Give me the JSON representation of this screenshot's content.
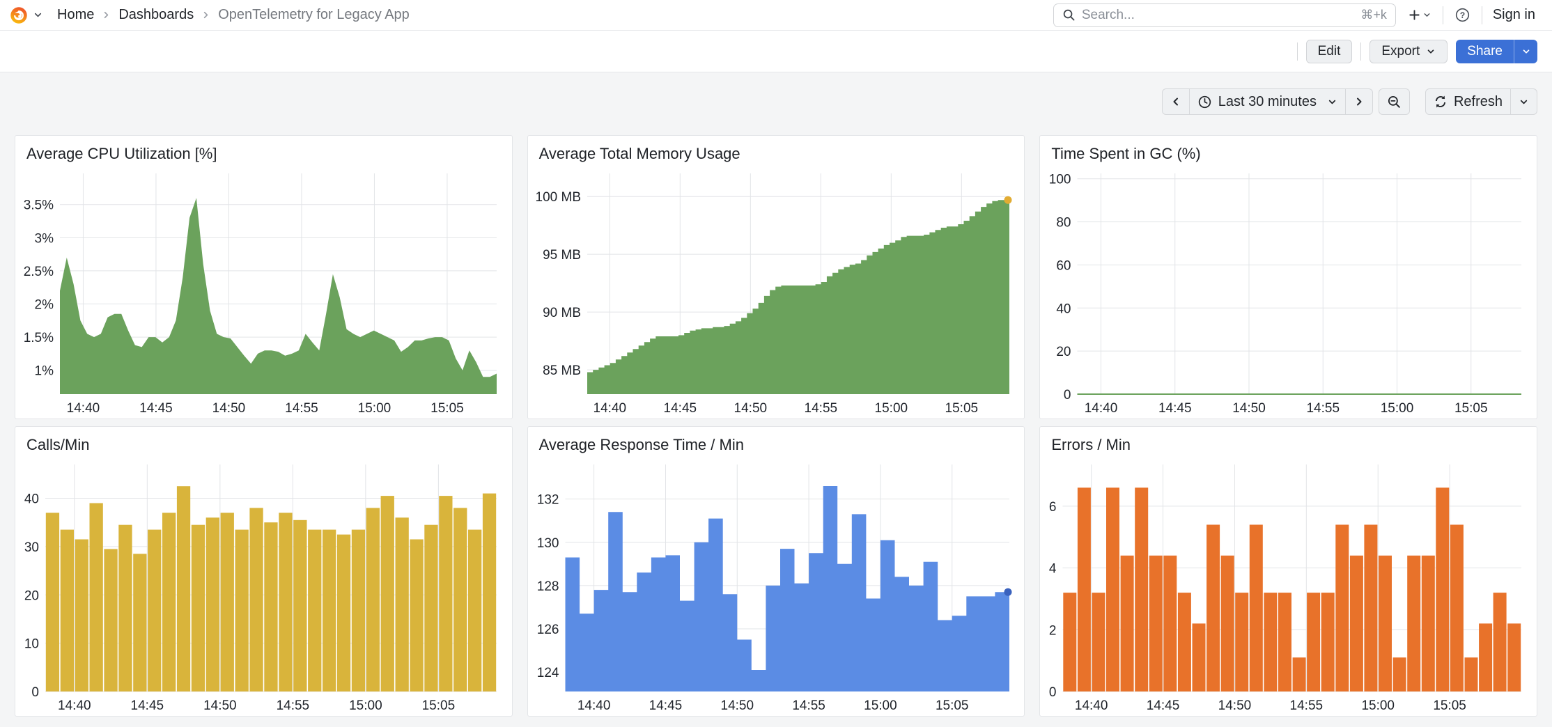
{
  "topnav": {
    "breadcrumb": [
      {
        "label": "Home"
      },
      {
        "label": "Dashboards"
      },
      {
        "label": "OpenTelemetry for Legacy App"
      }
    ],
    "search": {
      "placeholder": "Search...",
      "shortcut": "⌘+k"
    },
    "sign_in": "Sign in"
  },
  "toolbar": {
    "edit": "Edit",
    "export": "Export",
    "share": "Share"
  },
  "timebar": {
    "range_label": "Last 30 minutes",
    "refresh_label": "Refresh"
  },
  "colors": {
    "green": "#6BA25C",
    "yellow": "#D9B43B",
    "blue": "#5B8CE4",
    "orange": "#E8722A",
    "primary_blue": "#3B70D6",
    "grid_line": "#E2E4E7",
    "page_bg": "#F4F5F6"
  },
  "panels": [
    {
      "title": "Average CPU Utilization [%]",
      "chart_data": {
        "type": "area",
        "color": "#6BA25C",
        "xlabel": "",
        "ylabel": "",
        "ylim": [
          0.64,
          3.97
        ],
        "x_domain": [
          878.4,
          908.4
        ],
        "y_ticks": [
          {
            "v": 1,
            "t": "1%"
          },
          {
            "v": 1.5,
            "t": "1.5%"
          },
          {
            "v": 2,
            "t": "2%"
          },
          {
            "v": 2.5,
            "t": "2.5%"
          },
          {
            "v": 3,
            "t": "3%"
          },
          {
            "v": 3.5,
            "t": "3.5%"
          }
        ],
        "x_ticks": [
          {
            "v": 880,
            "t": "14:40"
          },
          {
            "v": 885,
            "t": "14:45"
          },
          {
            "v": 890,
            "t": "14:50"
          },
          {
            "v": 895,
            "t": "14:55"
          },
          {
            "v": 900,
            "t": "15:00"
          },
          {
            "v": 905,
            "t": "15:05"
          }
        ],
        "values": [
          2.2,
          2.7,
          2.3,
          1.75,
          1.55,
          1.5,
          1.55,
          1.8,
          1.85,
          1.85,
          1.6,
          1.38,
          1.35,
          1.5,
          1.5,
          1.42,
          1.5,
          1.75,
          2.4,
          3.3,
          3.6,
          2.6,
          1.9,
          1.55,
          1.5,
          1.48,
          1.35,
          1.22,
          1.1,
          1.25,
          1.3,
          1.3,
          1.28,
          1.22,
          1.25,
          1.3,
          1.55,
          1.42,
          1.3,
          1.85,
          2.45,
          2.1,
          1.62,
          1.55,
          1.5,
          1.55,
          1.6,
          1.55,
          1.5,
          1.45,
          1.28,
          1.35,
          1.45,
          1.45,
          1.48,
          1.5,
          1.5,
          1.45,
          1.18,
          1.0,
          1.3,
          1.12,
          0.9,
          0.9,
          0.95
        ]
      }
    },
    {
      "title": "Average Total Memory Usage",
      "chart_data": {
        "type": "steps",
        "color": "#6BA25C",
        "end_dot": "#E2AC33",
        "xlabel": "",
        "ylabel": "",
        "ylim": [
          82.9,
          102.0
        ],
        "x_domain": [
          878.4,
          908.4
        ],
        "y_ticks": [
          {
            "v": 85,
            "t": "85 MB"
          },
          {
            "v": 90,
            "t": "90 MB"
          },
          {
            "v": 95,
            "t": "95 MB"
          },
          {
            "v": 100,
            "t": "100 MB"
          }
        ],
        "x_ticks": [
          {
            "v": 880,
            "t": "14:40"
          },
          {
            "v": 885,
            "t": "14:45"
          },
          {
            "v": 890,
            "t": "14:50"
          },
          {
            "v": 895,
            "t": "14:55"
          },
          {
            "v": 900,
            "t": "15:00"
          },
          {
            "v": 905,
            "t": "15:05"
          }
        ],
        "values": [
          84.8,
          85.0,
          85.2,
          85.4,
          85.6,
          85.9,
          86.2,
          86.5,
          86.8,
          87.1,
          87.4,
          87.7,
          87.9,
          87.9,
          87.9,
          87.9,
          88.0,
          88.2,
          88.4,
          88.5,
          88.6,
          88.6,
          88.7,
          88.7,
          88.8,
          89.0,
          89.2,
          89.5,
          89.9,
          90.3,
          90.8,
          91.4,
          91.9,
          92.2,
          92.3,
          92.3,
          92.3,
          92.3,
          92.3,
          92.3,
          92.4,
          92.6,
          93.1,
          93.4,
          93.7,
          93.9,
          94.1,
          94.2,
          94.5,
          94.9,
          95.2,
          95.5,
          95.8,
          96.0,
          96.2,
          96.5,
          96.6,
          96.6,
          96.6,
          96.7,
          96.9,
          97.1,
          97.3,
          97.4,
          97.4,
          97.6,
          97.9,
          98.3,
          98.7,
          99.1,
          99.4,
          99.6,
          99.7,
          99.7
        ]
      }
    },
    {
      "title": "Time Spent in GC (%)",
      "chart_data": {
        "type": "line",
        "color": "#6BA25C",
        "xlabel": "",
        "ylabel": "",
        "ylim": [
          0,
          102.5
        ],
        "x_domain": [
          878.4,
          908.4
        ],
        "y_ticks": [
          {
            "v": 0,
            "t": "0"
          },
          {
            "v": 20,
            "t": "20"
          },
          {
            "v": 40,
            "t": "40"
          },
          {
            "v": 60,
            "t": "60"
          },
          {
            "v": 80,
            "t": "80"
          },
          {
            "v": 100,
            "t": "100"
          }
        ],
        "x_ticks": [
          {
            "v": 880,
            "t": "14:40"
          },
          {
            "v": 885,
            "t": "14:45"
          },
          {
            "v": 890,
            "t": "14:50"
          },
          {
            "v": 895,
            "t": "14:55"
          },
          {
            "v": 900,
            "t": "15:00"
          },
          {
            "v": 905,
            "t": "15:05"
          }
        ],
        "values": [
          0
        ]
      }
    },
    {
      "title": "Calls/Min",
      "chart_data": {
        "type": "bars",
        "color": "#D9B43B",
        "xlabel": "",
        "ylabel": "",
        "ylim": [
          0,
          47
        ],
        "x_domain": [
          878,
          909
        ],
        "y_ticks": [
          {
            "v": 0,
            "t": "0"
          },
          {
            "v": 10,
            "t": "10"
          },
          {
            "v": 20,
            "t": "20"
          },
          {
            "v": 30,
            "t": "30"
          },
          {
            "v": 40,
            "t": "40"
          }
        ],
        "x_ticks": [
          {
            "v": 880,
            "t": "14:40"
          },
          {
            "v": 885,
            "t": "14:45"
          },
          {
            "v": 890,
            "t": "14:50"
          },
          {
            "v": 895,
            "t": "14:55"
          },
          {
            "v": 900,
            "t": "15:00"
          },
          {
            "v": 905,
            "t": "15:05"
          }
        ],
        "values": [
          37,
          33.5,
          31.5,
          39,
          29.5,
          34.5,
          28.5,
          33.5,
          37,
          42.5,
          34.5,
          36,
          37,
          33.5,
          38,
          35,
          37,
          35.5,
          33.5,
          33.5,
          32.5,
          33.5,
          38,
          40.5,
          36,
          31.5,
          34.5,
          40.5,
          38,
          33.5,
          41
        ]
      }
    },
    {
      "title": "Average Response Time / Min",
      "chart_data": {
        "type": "steps",
        "color": "#5B8CE4",
        "end_dot": "#3A62BE",
        "xlabel": "",
        "ylabel": "",
        "ylim": [
          123.1,
          133.6
        ],
        "x_domain": [
          878,
          909
        ],
        "y_ticks": [
          {
            "v": 124,
            "t": "124"
          },
          {
            "v": 126,
            "t": "126"
          },
          {
            "v": 128,
            "t": "128"
          },
          {
            "v": 130,
            "t": "130"
          },
          {
            "v": 132,
            "t": "132"
          }
        ],
        "x_ticks": [
          {
            "v": 880,
            "t": "14:40"
          },
          {
            "v": 885,
            "t": "14:45"
          },
          {
            "v": 890,
            "t": "14:50"
          },
          {
            "v": 895,
            "t": "14:55"
          },
          {
            "v": 900,
            "t": "15:00"
          },
          {
            "v": 905,
            "t": "15:05"
          }
        ],
        "values": [
          129.3,
          126.7,
          127.8,
          131.4,
          127.7,
          128.6,
          129.3,
          129.4,
          127.3,
          130.0,
          131.1,
          127.6,
          125.5,
          124.1,
          128.0,
          129.7,
          128.1,
          129.5,
          132.6,
          129.0,
          131.3,
          127.4,
          130.1,
          128.4,
          128.0,
          129.1,
          126.4,
          126.6,
          127.5,
          127.5,
          127.7
        ]
      }
    },
    {
      "title": "Errors / Min",
      "chart_data": {
        "type": "bars",
        "color": "#E8722A",
        "xlabel": "",
        "ylabel": "",
        "ylim": [
          0,
          7.35
        ],
        "x_domain": [
          878,
          910
        ],
        "y_ticks": [
          {
            "v": 0,
            "t": "0"
          },
          {
            "v": 2,
            "t": "2"
          },
          {
            "v": 4,
            "t": "4"
          },
          {
            "v": 6,
            "t": "6"
          }
        ],
        "x_ticks": [
          {
            "v": 880,
            "t": "14:40"
          },
          {
            "v": 885,
            "t": "14:45"
          },
          {
            "v": 890,
            "t": "14:50"
          },
          {
            "v": 895,
            "t": "14:55"
          },
          {
            "v": 900,
            "t": "15:00"
          },
          {
            "v": 905,
            "t": "15:05"
          }
        ],
        "values": [
          3.2,
          6.6,
          3.2,
          6.6,
          4.4,
          6.6,
          4.4,
          4.4,
          3.2,
          2.2,
          5.4,
          4.4,
          3.2,
          5.4,
          3.2,
          3.2,
          1.1,
          3.2,
          3.2,
          5.4,
          4.4,
          5.4,
          4.4,
          1.1,
          4.4,
          4.4,
          6.6,
          5.4,
          1.1,
          2.2,
          3.2,
          2.2
        ]
      }
    }
  ]
}
